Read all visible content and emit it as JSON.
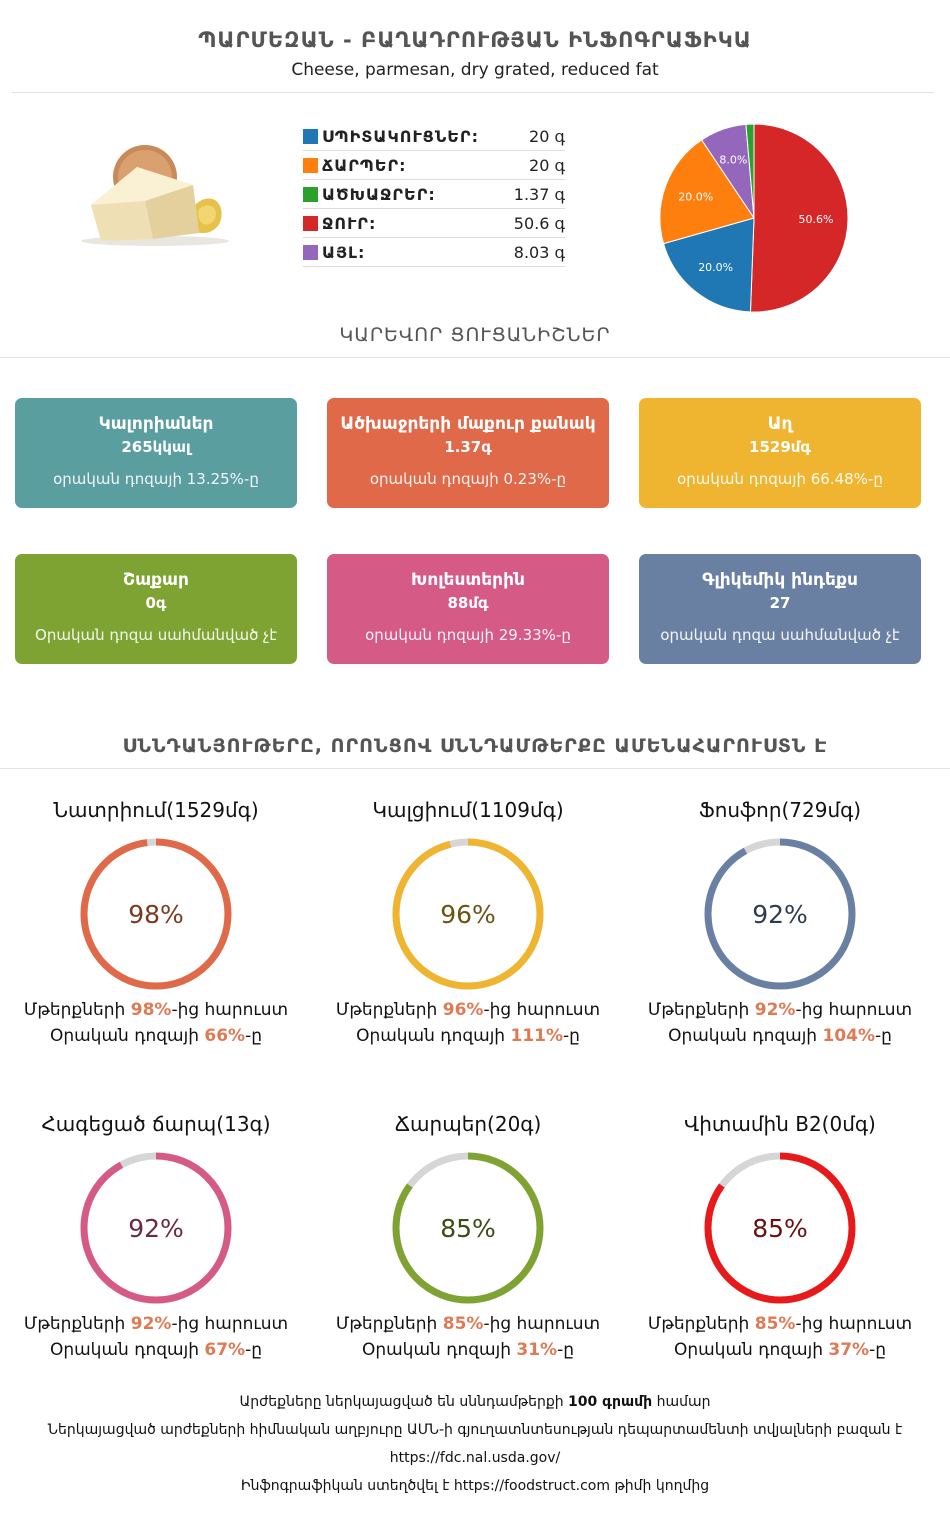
{
  "header": {
    "title": "ՊԱՐՄԵԶԱՆ - ԲԱՂԱԴՐՈՒԹՅԱՆ ԻՆՖՈԳՐԱՖԻԿԱ",
    "subtitle": "Cheese, parmesan, dry grated, reduced fat"
  },
  "macros": [
    {
      "name": "ՍՊԻՏԱԿՈՒՑՆԵՐ:",
      "value": "20 գ",
      "color": "#1f77b4"
    },
    {
      "name": "ՃԱՐՊԵՐ:",
      "value": "20 գ",
      "color": "#ff7f0e"
    },
    {
      "name": "ԱԾԽԱՋՐԵՐ:",
      "value": "1.37 գ",
      "color": "#2ca02c"
    },
    {
      "name": "ՋՈՒՐ:",
      "value": "50.6 գ",
      "color": "#d62728"
    },
    {
      "name": "ԱՅԼ:",
      "value": "8.03 գ",
      "color": "#9467bd"
    }
  ],
  "chart_data": {
    "type": "pie",
    "slices": [
      {
        "label": "50.6%",
        "value": 50.6,
        "color": "#d62728"
      },
      {
        "label": "20.0%",
        "value": 20.0,
        "color": "#1f77b4"
      },
      {
        "label": "20.0%",
        "value": 20.0,
        "color": "#ff7f0e"
      },
      {
        "label": "8.0%",
        "value": 8.03,
        "color": "#9467bd"
      },
      {
        "label": "",
        "value": 1.37,
        "color": "#2ca02c"
      }
    ]
  },
  "key_section_title": "ԿԱՐԵՎՈՐ ՑՈՒՑԱՆԻՇՆԵՐ",
  "cards": [
    {
      "name": "Կալորիաներ",
      "value": "265կկալ",
      "daily": "օրական դոզայի 13.25%-ը",
      "color": "#5b9ea0"
    },
    {
      "name": "Ածխաջրերի մաքուր քանակ",
      "value": "1.37գ",
      "daily": "օրական դոզայի 0.23%-ը",
      "color": "#e0694a"
    },
    {
      "name": "Աղ",
      "value": "1529մգ",
      "daily": "օրական դոզայի 66.48%-ը",
      "color": "#f0b530"
    },
    {
      "name": "Շաքար",
      "value": "0գ",
      "daily": "Օրական դոզա սահմանված չէ",
      "color": "#7ea332"
    },
    {
      "name": "Խոլեստերին",
      "value": "88մգ",
      "daily": "օրական դոզայի 29.33%-ը",
      "color": "#d65a86"
    },
    {
      "name": "Գլիկեմիկ ինդեքս",
      "value": "27",
      "daily": "օրական դոզա սահմանված չէ",
      "color": "#6a80a3"
    }
  ],
  "nutrients_section_title": "ՍՆՆԴԱՆՅՈՒԹԵՐԸ, ՈՐՈՆՑՈՎ ՍՆՆԴԱՄԹԵՐՔԸ ԱՄԵՆԱՀԱՐՈՒՍՏՆ Է",
  "rings": [
    {
      "title": "Նատրիում(1529մգ)",
      "percent": 98,
      "label": "98%",
      "color": "#e0694a",
      "text_color": "#7a3b22",
      "richer_pre": "Մթերքների ",
      "richer_val": "98%",
      "richer_post": "-ից հարուստ",
      "daily_pre": "Օրական դոզայի ",
      "daily_val": "66%",
      "daily_post": "-ը"
    },
    {
      "title": "Կալցիում(1109մգ)",
      "percent": 96,
      "label": "96%",
      "color": "#f0b530",
      "text_color": "#6b5412",
      "richer_pre": "Մթերքների ",
      "richer_val": "96%",
      "richer_post": "-ից հարուստ",
      "daily_pre": "Օրական դոզայի ",
      "daily_val": "111%",
      "daily_post": "-ը"
    },
    {
      "title": "Ֆոսֆոր(729մգ)",
      "percent": 92,
      "label": "92%",
      "color": "#6a80a3",
      "text_color": "#2f3b50",
      "richer_pre": "Մթերքների ",
      "richer_val": "92%",
      "richer_post": "-ից հարուստ",
      "daily_pre": "Օրական դոզայի ",
      "daily_val": "104%",
      "daily_post": "-ը"
    },
    {
      "title": "Հագեցած ճարպ(13գ)",
      "percent": 92,
      "label": "92%",
      "color": "#d65a86",
      "text_color": "#6b2a40",
      "richer_pre": "Մթերքների ",
      "richer_val": "92%",
      "richer_post": "-ից հարուստ",
      "daily_pre": "Օրական դոզայի ",
      "daily_val": "67%",
      "daily_post": "-ը"
    },
    {
      "title": "Ճարպեր(20գ)",
      "percent": 85,
      "label": "85%",
      "color": "#7ea332",
      "text_color": "#3a4d14",
      "richer_pre": "Մթերքների ",
      "richer_val": "85%",
      "richer_post": "-ից հարուստ",
      "daily_pre": "Օրական դոզայի ",
      "daily_val": "31%",
      "daily_post": "-ը"
    },
    {
      "title": "Վիտամին B2(0մգ)",
      "percent": 85,
      "label": "85%",
      "color": "#e8191a",
      "text_color": "#6b1010",
      "richer_pre": "Մթերքների ",
      "richer_val": "85%",
      "richer_post": "-ից հարուստ",
      "daily_pre": "Օրական դոզայի ",
      "daily_val": "37%",
      "daily_post": "-ը"
    }
  ],
  "footer": {
    "line1_pre": "Արժեքները ներկայացված են սննդամթերքի ",
    "line1_bold": "100 գրամի",
    "line1_post": " համար",
    "line2": "Ներկայացված արժեքների հիմնական աղբյուրը ԱՄՆ-ի գյուղատնտեսության դեպարտամենտի տվյալների բազան է",
    "line3": "https://fdc.nal.usda.gov/",
    "line4_pre": "Ինֆոգրաֆիկան ստեղծվել է ",
    "line4_link": "https://foodstruct.com",
    "line4_post": " թիմի կողմից"
  }
}
